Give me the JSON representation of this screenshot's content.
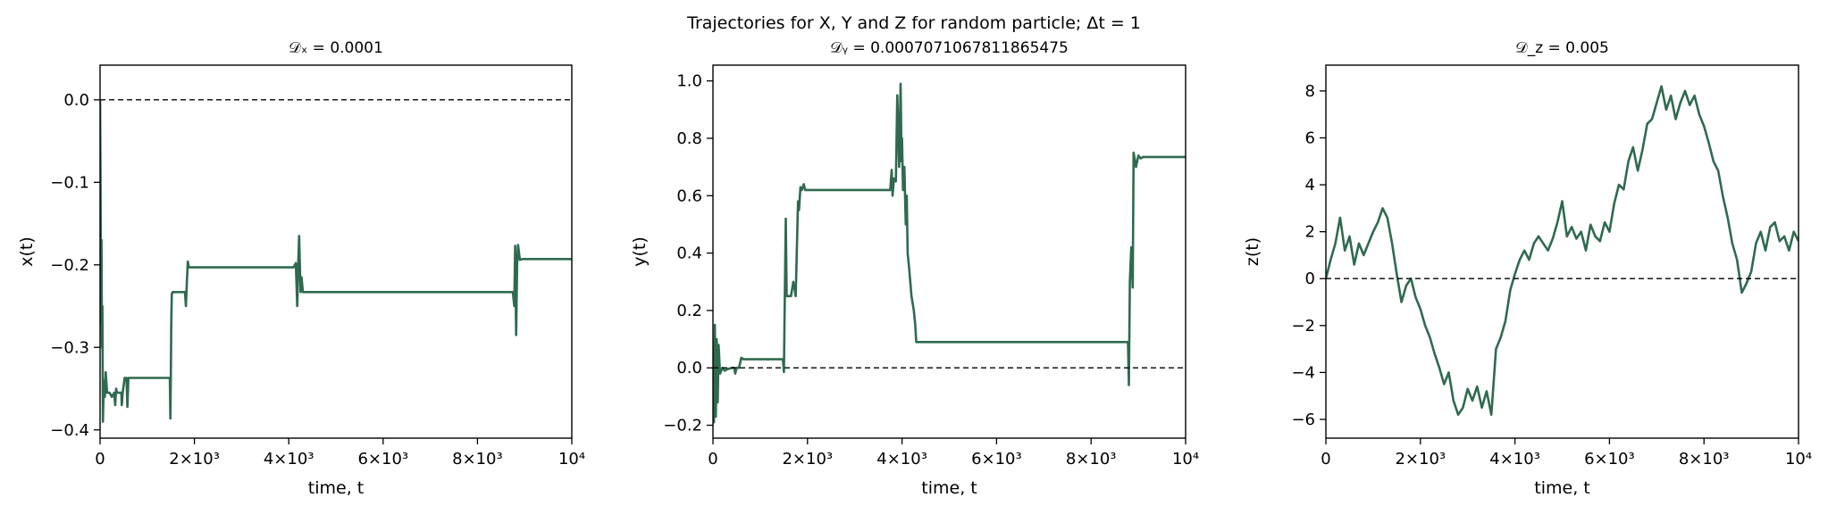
{
  "figure": {
    "suptitle": "Trajectories for X, Y and Z for random particle; Δt = 1"
  },
  "chart_data": [
    {
      "type": "line",
      "title": "𝒟ₓ = 0.0001",
      "xlabel": "time, t",
      "ylabel": "x(t)",
      "xlim": [
        0,
        10000
      ],
      "ylim": [
        -0.41,
        0.042
      ],
      "xticks": [
        0,
        2000,
        4000,
        6000,
        8000,
        10000
      ],
      "xtick_labels": [
        "0",
        "2×10³",
        "4×10³",
        "6×10³",
        "8×10³",
        "10⁴"
      ],
      "yticks": [
        0.0,
        -0.1,
        -0.2,
        -0.3,
        -0.4
      ],
      "ytick_labels": [
        "0.0",
        "−0.1",
        "−0.2",
        "−0.3",
        "−0.4"
      ],
      "reference_line": {
        "y": 0.0,
        "style": "dashed",
        "color": "#000000"
      },
      "series": [
        {
          "color": "#2f6a4f",
          "x": [
            0,
            10,
            20,
            30,
            40,
            50,
            60,
            80,
            100,
            120,
            150,
            200,
            250,
            300,
            320,
            340,
            360,
            400,
            450,
            460,
            480,
            520,
            560,
            580,
            600,
            640,
            700,
            1000,
            1300,
            1480,
            1490,
            1500,
            1510,
            1520,
            1540,
            1560,
            1600,
            1700,
            1800,
            1820,
            1840,
            1860,
            1880,
            1950,
            2500,
            3500,
            4100,
            4150,
            4180,
            4200,
            4220,
            4250,
            4270,
            4300,
            5000,
            6000,
            7000,
            8000,
            8750,
            8780,
            8800,
            8820,
            8840,
            8860,
            8900,
            8950,
            9000,
            9500,
            10000
          ],
          "y": [
            0.0,
            -0.1,
            -0.27,
            -0.17,
            -0.3,
            -0.25,
            -0.39,
            -0.34,
            -0.36,
            -0.33,
            -0.355,
            -0.355,
            -0.36,
            -0.355,
            -0.37,
            -0.35,
            -0.355,
            -0.355,
            -0.355,
            -0.37,
            -0.355,
            -0.337,
            -0.337,
            -0.372,
            -0.337,
            -0.337,
            -0.337,
            -0.337,
            -0.337,
            -0.337,
            -0.386,
            -0.335,
            -0.27,
            -0.235,
            -0.233,
            -0.233,
            -0.233,
            -0.233,
            -0.233,
            -0.25,
            -0.22,
            -0.196,
            -0.203,
            -0.203,
            -0.203,
            -0.203,
            -0.203,
            -0.198,
            -0.25,
            -0.198,
            -0.165,
            -0.233,
            -0.215,
            -0.233,
            -0.233,
            -0.233,
            -0.233,
            -0.233,
            -0.233,
            -0.25,
            -0.177,
            -0.285,
            -0.2,
            -0.176,
            -0.194,
            -0.193,
            -0.193,
            -0.193,
            -0.193
          ]
        }
      ]
    },
    {
      "type": "line",
      "title": "𝒟ᵧ = 0.0007071067811865475",
      "xlabel": "time, t",
      "ylabel": "y(t)",
      "xlim": [
        0,
        10000
      ],
      "ylim": [
        -0.245,
        1.055
      ],
      "xticks": [
        0,
        2000,
        4000,
        6000,
        8000,
        10000
      ],
      "xtick_labels": [
        "0",
        "2×10³",
        "4×10³",
        "6×10³",
        "8×10³",
        "10⁴"
      ],
      "yticks": [
        1.0,
        0.8,
        0.6,
        0.4,
        0.2,
        0.0,
        -0.2
      ],
      "ytick_labels": [
        "1.0",
        "0.8",
        "0.6",
        "0.4",
        "0.2",
        "0.0",
        "−0.2"
      ],
      "reference_line": {
        "y": 0.0,
        "style": "dashed",
        "color": "#000000"
      },
      "series": [
        {
          "color": "#2f6a4f",
          "x": [
            0,
            20,
            40,
            60,
            80,
            100,
            120,
            150,
            200,
            250,
            300,
            400,
            450,
            470,
            500,
            550,
            600,
            650,
            700,
            1000,
            1200,
            1400,
            1480,
            1500,
            1520,
            1540,
            1560,
            1580,
            1600,
            1650,
            1700,
            1750,
            1800,
            1820,
            1850,
            1880,
            1920,
            1950,
            2000,
            2500,
            3000,
            3500,
            3750,
            3780,
            3800,
            3830,
            3870,
            3900,
            3940,
            3970,
            3990,
            4000,
            4020,
            4050,
            4080,
            4100,
            4120,
            4150,
            4200,
            4250,
            4280,
            4300,
            5000,
            6000,
            7000,
            8000,
            8780,
            8800,
            8820,
            8850,
            8880,
            8900,
            8950,
            9000,
            9050,
            9100,
            9500,
            10000
          ],
          "y": [
            0.0,
            -0.19,
            0.15,
            -0.17,
            0.1,
            -0.12,
            0.08,
            -0.02,
            0.0,
            -0.01,
            -0.005,
            0.0,
            0.0,
            -0.02,
            0.0,
            0.0,
            0.035,
            0.03,
            0.03,
            0.03,
            0.03,
            0.03,
            0.03,
            -0.015,
            0.25,
            0.52,
            0.25,
            0.25,
            0.25,
            0.25,
            0.3,
            0.25,
            0.58,
            0.55,
            0.63,
            0.62,
            0.64,
            0.62,
            0.62,
            0.62,
            0.62,
            0.62,
            0.62,
            0.69,
            0.6,
            0.66,
            0.65,
            0.95,
            0.7,
            0.99,
            0.72,
            0.8,
            0.62,
            0.7,
            0.5,
            0.6,
            0.4,
            0.35,
            0.25,
            0.2,
            0.15,
            0.09,
            0.09,
            0.09,
            0.09,
            0.09,
            0.09,
            -0.06,
            0.3,
            0.42,
            0.28,
            0.75,
            0.7,
            0.74,
            0.73,
            0.735,
            0.735,
            0.735
          ]
        }
      ]
    },
    {
      "type": "line",
      "title": "𝒟_z = 0.005",
      "xlabel": "time, t",
      "ylabel": "z(t)",
      "xlim": [
        0,
        10000
      ],
      "ylim": [
        -6.8,
        9.1
      ],
      "xticks": [
        0,
        2000,
        4000,
        6000,
        8000,
        10000
      ],
      "xtick_labels": [
        "0",
        "2×10³",
        "4×10³",
        "6×10³",
        "8×10³",
        "10⁴"
      ],
      "yticks": [
        8,
        6,
        4,
        2,
        0,
        -2,
        -4,
        -6
      ],
      "ytick_labels": [
        "8",
        "6",
        "4",
        "2",
        "0",
        "−2",
        "−4",
        "−6"
      ],
      "reference_line": {
        "y": 0,
        "style": "dashed",
        "color": "#000000"
      },
      "series": [
        {
          "color": "#2f6a4f",
          "x": [
            0,
            100,
            200,
            300,
            400,
            500,
            600,
            700,
            800,
            900,
            1000,
            1100,
            1200,
            1300,
            1400,
            1500,
            1600,
            1700,
            1800,
            1900,
            2000,
            2100,
            2200,
            2300,
            2400,
            2500,
            2600,
            2700,
            2800,
            2900,
            3000,
            3100,
            3200,
            3300,
            3400,
            3500,
            3600,
            3700,
            3800,
            3900,
            4000,
            4100,
            4200,
            4300,
            4400,
            4500,
            4600,
            4700,
            4800,
            4900,
            5000,
            5100,
            5200,
            5300,
            5400,
            5500,
            5600,
            5700,
            5800,
            5900,
            6000,
            6100,
            6200,
            6300,
            6400,
            6500,
            6600,
            6700,
            6800,
            6900,
            7000,
            7100,
            7200,
            7300,
            7400,
            7500,
            7600,
            7700,
            7800,
            7900,
            8000,
            8100,
            8200,
            8300,
            8400,
            8500,
            8600,
            8700,
            8800,
            8900,
            9000,
            9100,
            9200,
            9300,
            9400,
            9500,
            9600,
            9700,
            9800,
            9900,
            10000
          ],
          "y": [
            0.0,
            0.8,
            1.5,
            2.6,
            1.2,
            1.8,
            0.6,
            1.5,
            1.0,
            1.5,
            2.0,
            2.4,
            3.0,
            2.6,
            1.5,
            0.2,
            -1.0,
            -0.3,
            0.0,
            -0.8,
            -1.3,
            -2.0,
            -2.5,
            -3.2,
            -3.8,
            -4.5,
            -4.0,
            -5.2,
            -5.8,
            -5.5,
            -4.7,
            -5.2,
            -4.6,
            -5.5,
            -4.8,
            -5.8,
            -3.0,
            -2.5,
            -1.8,
            -0.5,
            0.2,
            0.8,
            1.2,
            0.8,
            1.5,
            1.8,
            1.5,
            1.2,
            1.7,
            2.4,
            3.3,
            1.8,
            2.2,
            1.7,
            2.0,
            1.2,
            2.3,
            1.8,
            1.6,
            2.4,
            2.0,
            3.2,
            4.0,
            3.8,
            5.0,
            5.6,
            4.6,
            5.5,
            6.6,
            6.8,
            7.5,
            8.2,
            7.2,
            7.8,
            6.8,
            7.5,
            8.0,
            7.4,
            7.8,
            7.0,
            6.5,
            5.8,
            5.0,
            4.6,
            3.5,
            2.6,
            1.5,
            0.8,
            -0.6,
            -0.2,
            0.3,
            1.5,
            2.0,
            1.2,
            2.2,
            2.4,
            1.6,
            1.8,
            1.2,
            2.0,
            1.6
          ]
        }
      ]
    }
  ]
}
